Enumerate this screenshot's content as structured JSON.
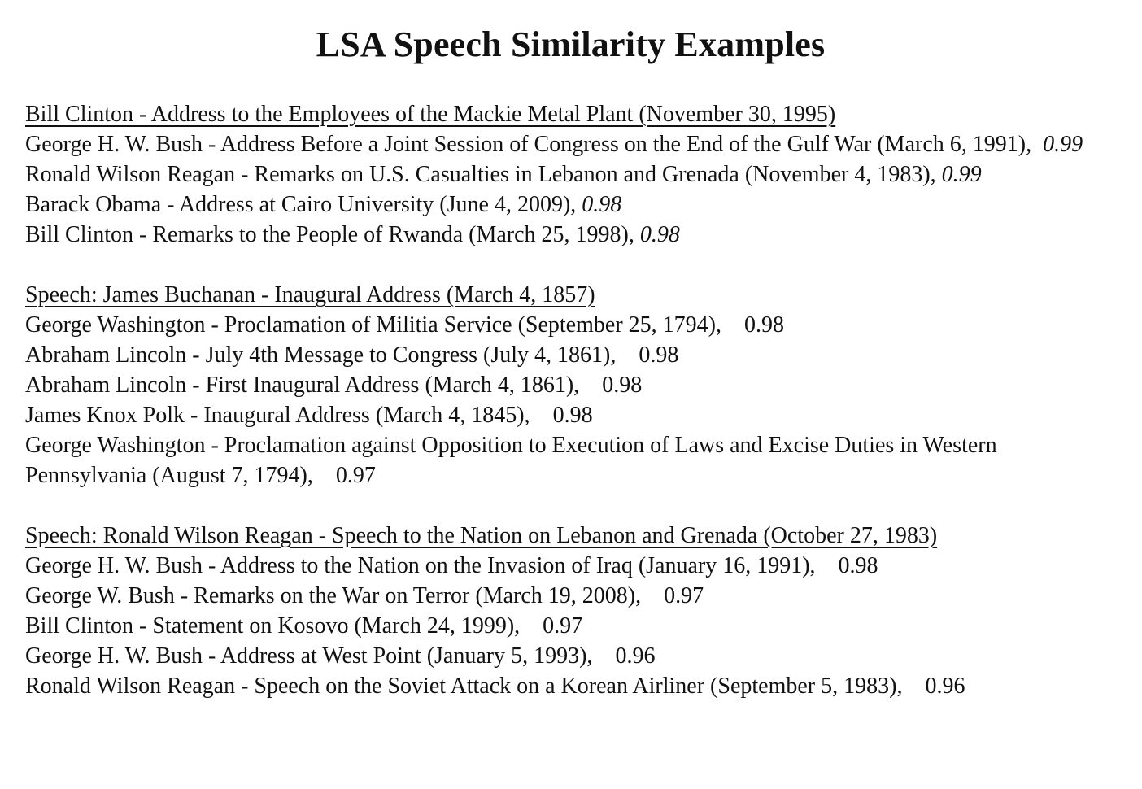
{
  "title": "LSA Speech Similarity Examples",
  "sections": [
    {
      "heading": "Bill Clinton - Address to the Employees of the Mackie Metal Plant (November 30, 1995)",
      "items": [
        {
          "text": "George H. W. Bush - Address Before a Joint Session of Congress on the End of the Gulf War (March 6, 1991),",
          "score": "0.99"
        },
        {
          "text": "Ronald Wilson Reagan - Remarks on U.S. Casualties in Lebanon and Grenada (November 4, 1983),",
          "score": "0.99"
        },
        {
          "text": "Barack Obama - Address at Cairo University (June 4, 2009),",
          "score": "0.98"
        },
        {
          "text": "Bill Clinton - Remarks to the People of Rwanda (March 25, 1998),",
          "score": "0.98"
        }
      ]
    },
    {
      "heading": "Speech: James Buchanan - Inaugural Address (March 4, 1857)",
      "items": [
        {
          "text": "George Washington - Proclamation of Militia Service (September 25, 1794),",
          "score": "0.98"
        },
        {
          "text": "Abraham Lincoln - July 4th Message to Congress (July 4, 1861),",
          "score": "0.98"
        },
        {
          "text": "Abraham Lincoln - First Inaugural Address (March 4, 1861),",
          "score": "0.98"
        },
        {
          "text": "James Knox Polk - Inaugural Address (March 4, 1845),",
          "score": "0.98"
        },
        {
          "text": "George Washington - Proclamation against Opposition to Execution of Laws and Excise Duties in Western Pennsylvania (August 7, 1794),",
          "score": "0.97"
        }
      ]
    },
    {
      "heading": "Speech: Ronald Wilson Reagan - Speech to the Nation on Lebanon and Grenada (October 27, 1983)",
      "items": [
        {
          "text": "George H. W. Bush - Address to the Nation on the Invasion of Iraq (January 16, 1991),",
          "score": "0.98"
        },
        {
          "text": "George W. Bush - Remarks on the War on Terror (March 19, 2008),",
          "score": "0.97"
        },
        {
          "text": "Bill Clinton - Statement on Kosovo (March 24, 1999),",
          "score": "0.97"
        },
        {
          "text": "George H. W. Bush - Address at West Point (January 5, 1993),",
          "score": "0.96"
        },
        {
          "text": "Ronald Wilson Reagan - Speech on the Soviet Attack on a Korean Airliner (September 5, 1983),",
          "score": "0.96"
        }
      ]
    }
  ]
}
